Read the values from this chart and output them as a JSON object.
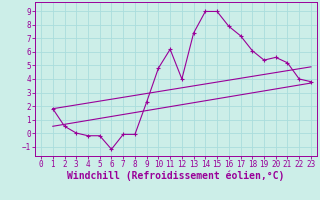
{
  "xlabel": "Windchill (Refroidissement éolien,°C)",
  "background_color": "#cceee8",
  "line_color": "#990099",
  "xlim": [
    -0.5,
    23.5
  ],
  "ylim": [
    -1.7,
    9.7
  ],
  "xticks": [
    0,
    1,
    2,
    3,
    4,
    5,
    6,
    7,
    8,
    9,
    10,
    11,
    12,
    13,
    14,
    15,
    16,
    17,
    18,
    19,
    20,
    21,
    22,
    23
  ],
  "yticks": [
    -1,
    0,
    1,
    2,
    3,
    4,
    5,
    6,
    7,
    8,
    9
  ],
  "line1_x": [
    1,
    2,
    3,
    4,
    5,
    6,
    7,
    8,
    9,
    10,
    11,
    12,
    13,
    14,
    15,
    16,
    17,
    18,
    19,
    20,
    21,
    22,
    23
  ],
  "line1_y": [
    1.8,
    0.5,
    0.0,
    -0.2,
    -0.2,
    -1.2,
    -0.1,
    -0.1,
    2.3,
    4.8,
    6.2,
    4.0,
    7.4,
    9.0,
    9.0,
    7.9,
    7.2,
    6.1,
    5.4,
    5.6,
    5.2,
    4.0,
    3.8
  ],
  "line2_x": [
    1,
    23
  ],
  "line2_y": [
    0.5,
    3.7
  ],
  "line3_x": [
    1,
    23
  ],
  "line3_y": [
    1.8,
    4.9
  ],
  "grid_color": "#aadddd",
  "font_color": "#990099",
  "tick_fontsize": 5.5,
  "xlabel_fontsize": 7.0
}
